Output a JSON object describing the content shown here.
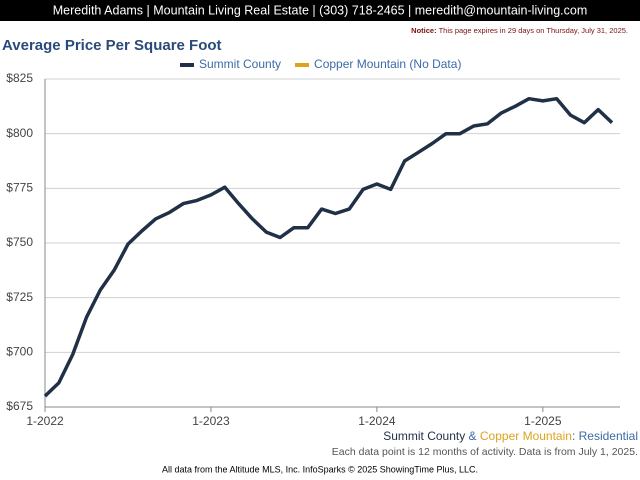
{
  "header": {
    "text": "Meredith Adams | Mountain Living Real Estate | (303) 718-2465 | meredith@mountain-living.com"
  },
  "notice": {
    "label": "Notice:",
    "text": "This page expires in 29 days on Thursday, July 31, 2025."
  },
  "chart_data": {
    "type": "line",
    "title": "Average Price Per Square Foot",
    "categories": [
      "1-2022",
      null,
      null,
      null,
      null,
      null,
      null,
      null,
      null,
      null,
      null,
      null,
      "1-2023",
      null,
      null,
      null,
      null,
      null,
      null,
      null,
      null,
      null,
      null,
      null,
      "1-2024",
      null,
      null,
      null,
      null,
      null,
      null,
      null,
      null,
      null,
      null,
      null,
      "1-2025",
      null,
      null,
      null,
      null,
      null
    ],
    "series": [
      {
        "name": "Summit County",
        "color": "#1f3047",
        "values": [
          680,
          686,
          699,
          716,
          728.5,
          737.5,
          749.5,
          755.5,
          761,
          764,
          768,
          769.5,
          772,
          775.5,
          768,
          761,
          755,
          752.5,
          757,
          757,
          765.5,
          763.5,
          765.5,
          774.5,
          777,
          774.5,
          787.5,
          791.5,
          795.5,
          800,
          800,
          803.5,
          804.5,
          809.5,
          812.5,
          816,
          815,
          816,
          808.5,
          805,
          811,
          805
        ]
      },
      {
        "name": "Copper Mountain (No Data)",
        "color": "#e0a21e",
        "values": [
          null,
          null,
          null,
          null,
          null,
          null,
          null,
          null,
          null,
          null,
          null,
          null,
          null,
          null,
          null,
          null,
          null,
          null,
          null,
          null,
          null,
          null,
          null,
          null,
          null,
          null,
          null,
          null,
          null,
          null,
          null,
          null,
          null,
          null,
          null,
          null,
          null,
          null,
          null,
          null,
          null,
          null
        ]
      }
    ],
    "ylim": [
      675,
      825
    ],
    "yticks": [
      {
        "value": 675,
        "label": "$675"
      },
      {
        "value": 700,
        "label": "$700"
      },
      {
        "value": 725,
        "label": "$725"
      },
      {
        "value": 750,
        "label": "$750"
      },
      {
        "value": 775,
        "label": "$775"
      },
      {
        "value": 800,
        "label": "$800"
      },
      {
        "value": 825,
        "label": "$825"
      }
    ],
    "grid": true,
    "legend": "top"
  },
  "footer": {
    "subtitle_parts": [
      {
        "text": "Summit County",
        "color": "#1f3047"
      },
      {
        "text": " & ",
        "color": "#3d6aa8"
      },
      {
        "text": "Copper Mountain",
        "color": "#e0a21e"
      },
      {
        "text": ": Residential",
        "color": "#3d6aa8"
      }
    ],
    "note": "Each data point is 12 months of activity. Data is from July 1, 2025.",
    "credit": "All data from the Altitude MLS, Inc. InfoSparks © 2025 ShowingTime Plus, LLC."
  }
}
